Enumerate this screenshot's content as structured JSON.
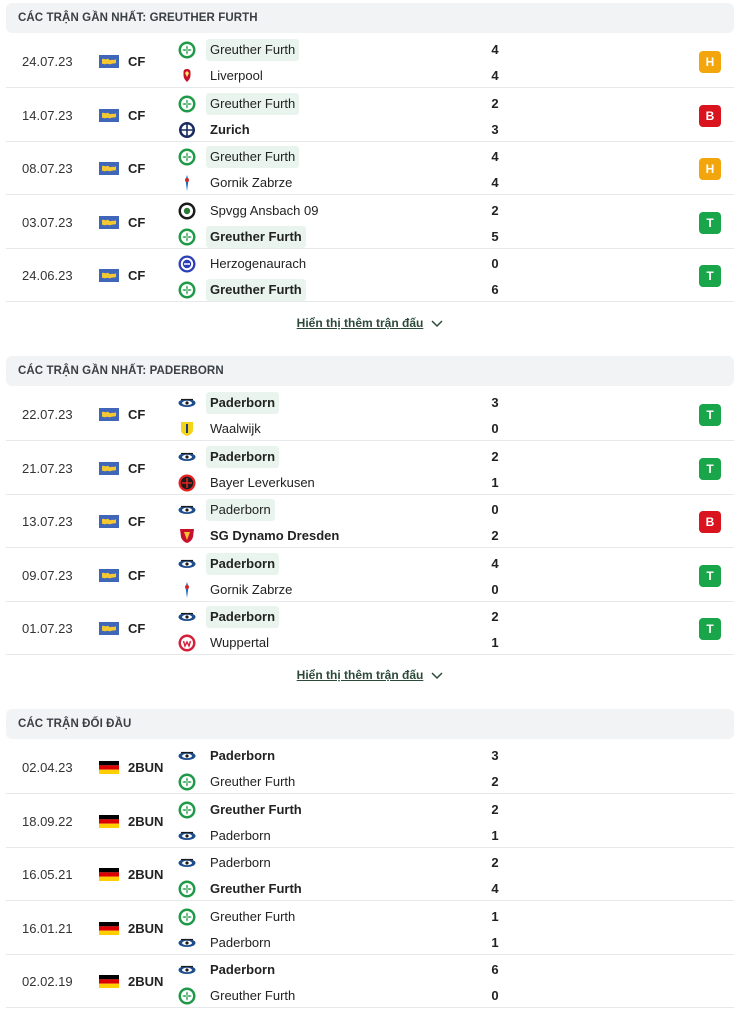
{
  "colors": {
    "draw": "#f2a60c",
    "loss": "#d9141e",
    "win": "#19a54a",
    "greuther": "#1f9a48",
    "paderborn": "#1e4d8c"
  },
  "sections": [
    {
      "title": "CÁC TRẬN GẦN NHẤT: GREUTHER FURTH",
      "more": "Hiển thị thêm trận đấu",
      "matches": [
        {
          "date": "24.07.23",
          "flag": "world-flag",
          "league": "CF",
          "home": {
            "name": "Greuther Furth",
            "logo": "greuther-logo",
            "hl": true,
            "bold": false
          },
          "away": {
            "name": "Liverpool",
            "logo": "liverpool-logo",
            "hl": false,
            "bold": false
          },
          "hs": "4",
          "as": "4",
          "result": "H",
          "rtype": "draw"
        },
        {
          "date": "14.07.23",
          "flag": "world-flag",
          "league": "CF",
          "home": {
            "name": "Greuther Furth",
            "logo": "greuther-logo",
            "hl": true,
            "bold": false
          },
          "away": {
            "name": "Zurich",
            "logo": "zurich-logo",
            "hl": false,
            "bold": true
          },
          "hs": "2",
          "as": "3",
          "result": "B",
          "rtype": "loss"
        },
        {
          "date": "08.07.23",
          "flag": "world-flag",
          "league": "CF",
          "home": {
            "name": "Greuther Furth",
            "logo": "greuther-logo",
            "hl": true,
            "bold": false
          },
          "away": {
            "name": "Gornik Zabrze",
            "logo": "gornik-logo",
            "hl": false,
            "bold": false
          },
          "hs": "4",
          "as": "4",
          "result": "H",
          "rtype": "draw"
        },
        {
          "date": "03.07.23",
          "flag": "world-flag",
          "league": "CF",
          "home": {
            "name": "Spvgg Ansbach 09",
            "logo": "ansbach-logo",
            "hl": false,
            "bold": false
          },
          "away": {
            "name": "Greuther Furth",
            "logo": "greuther-logo",
            "hl": true,
            "bold": true
          },
          "hs": "2",
          "as": "5",
          "result": "T",
          "rtype": "win"
        },
        {
          "date": "24.06.23",
          "flag": "world-flag",
          "league": "CF",
          "home": {
            "name": "Herzogenaurach",
            "logo": "herzogenaurach-logo",
            "hl": false,
            "bold": false
          },
          "away": {
            "name": "Greuther Furth",
            "logo": "greuther-logo",
            "hl": true,
            "bold": true
          },
          "hs": "0",
          "as": "6",
          "result": "T",
          "rtype": "win"
        }
      ]
    },
    {
      "title": "CÁC TRẬN GẦN NHẤT: PADERBORN",
      "more": "Hiển thị thêm trận đấu",
      "matches": [
        {
          "date": "22.07.23",
          "flag": "world-flag",
          "league": "CF",
          "home": {
            "name": "Paderborn",
            "logo": "paderborn-logo",
            "hl": true,
            "bold": true
          },
          "away": {
            "name": "Waalwijk",
            "logo": "waalwijk-logo",
            "hl": false,
            "bold": false
          },
          "hs": "3",
          "as": "0",
          "result": "T",
          "rtype": "win"
        },
        {
          "date": "21.07.23",
          "flag": "world-flag",
          "league": "CF",
          "home": {
            "name": "Paderborn",
            "logo": "paderborn-logo",
            "hl": true,
            "bold": true
          },
          "away": {
            "name": "Bayer Leverkusen",
            "logo": "leverkusen-logo",
            "hl": false,
            "bold": false
          },
          "hs": "2",
          "as": "1",
          "result": "T",
          "rtype": "win"
        },
        {
          "date": "13.07.23",
          "flag": "world-flag",
          "league": "CF",
          "home": {
            "name": "Paderborn",
            "logo": "paderborn-logo",
            "hl": true,
            "bold": false
          },
          "away": {
            "name": "SG Dynamo Dresden",
            "logo": "dresden-logo",
            "hl": false,
            "bold": true
          },
          "hs": "0",
          "as": "2",
          "result": "B",
          "rtype": "loss"
        },
        {
          "date": "09.07.23",
          "flag": "world-flag",
          "league": "CF",
          "home": {
            "name": "Paderborn",
            "logo": "paderborn-logo",
            "hl": true,
            "bold": true
          },
          "away": {
            "name": "Gornik Zabrze",
            "logo": "gornik-logo",
            "hl": false,
            "bold": false
          },
          "hs": "4",
          "as": "0",
          "result": "T",
          "rtype": "win"
        },
        {
          "date": "01.07.23",
          "flag": "world-flag",
          "league": "CF",
          "home": {
            "name": "Paderborn",
            "logo": "paderborn-logo",
            "hl": true,
            "bold": true
          },
          "away": {
            "name": "Wuppertal",
            "logo": "wuppertal-logo",
            "hl": false,
            "bold": false
          },
          "hs": "2",
          "as": "1",
          "result": "T",
          "rtype": "win"
        }
      ]
    },
    {
      "title": "CÁC TRẬN ĐỐI ĐẦU",
      "more": "",
      "matches": [
        {
          "date": "02.04.23",
          "flag": "germany-flag",
          "league": "2BUN",
          "home": {
            "name": "Paderborn",
            "logo": "paderborn-logo",
            "hl": false,
            "bold": true
          },
          "away": {
            "name": "Greuther Furth",
            "logo": "greuther-logo",
            "hl": false,
            "bold": false
          },
          "hs": "3",
          "as": "2",
          "result": "",
          "rtype": ""
        },
        {
          "date": "18.09.22",
          "flag": "germany-flag",
          "league": "2BUN",
          "home": {
            "name": "Greuther Furth",
            "logo": "greuther-logo",
            "hl": false,
            "bold": true
          },
          "away": {
            "name": "Paderborn",
            "logo": "paderborn-logo",
            "hl": false,
            "bold": false
          },
          "hs": "2",
          "as": "1",
          "result": "",
          "rtype": ""
        },
        {
          "date": "16.05.21",
          "flag": "germany-flag",
          "league": "2BUN",
          "home": {
            "name": "Paderborn",
            "logo": "paderborn-logo",
            "hl": false,
            "bold": false
          },
          "away": {
            "name": "Greuther Furth",
            "logo": "greuther-logo",
            "hl": false,
            "bold": true
          },
          "hs": "2",
          "as": "4",
          "result": "",
          "rtype": ""
        },
        {
          "date": "16.01.21",
          "flag": "germany-flag",
          "league": "2BUN",
          "home": {
            "name": "Greuther Furth",
            "logo": "greuther-logo",
            "hl": false,
            "bold": false
          },
          "away": {
            "name": "Paderborn",
            "logo": "paderborn-logo",
            "hl": false,
            "bold": false
          },
          "hs": "1",
          "as": "1",
          "result": "",
          "rtype": ""
        },
        {
          "date": "02.02.19",
          "flag": "germany-flag",
          "league": "2BUN",
          "home": {
            "name": "Paderborn",
            "logo": "paderborn-logo",
            "hl": false,
            "bold": true
          },
          "away": {
            "name": "Greuther Furth",
            "logo": "greuther-logo",
            "hl": false,
            "bold": false
          },
          "hs": "6",
          "as": "0",
          "result": "",
          "rtype": ""
        }
      ]
    }
  ]
}
